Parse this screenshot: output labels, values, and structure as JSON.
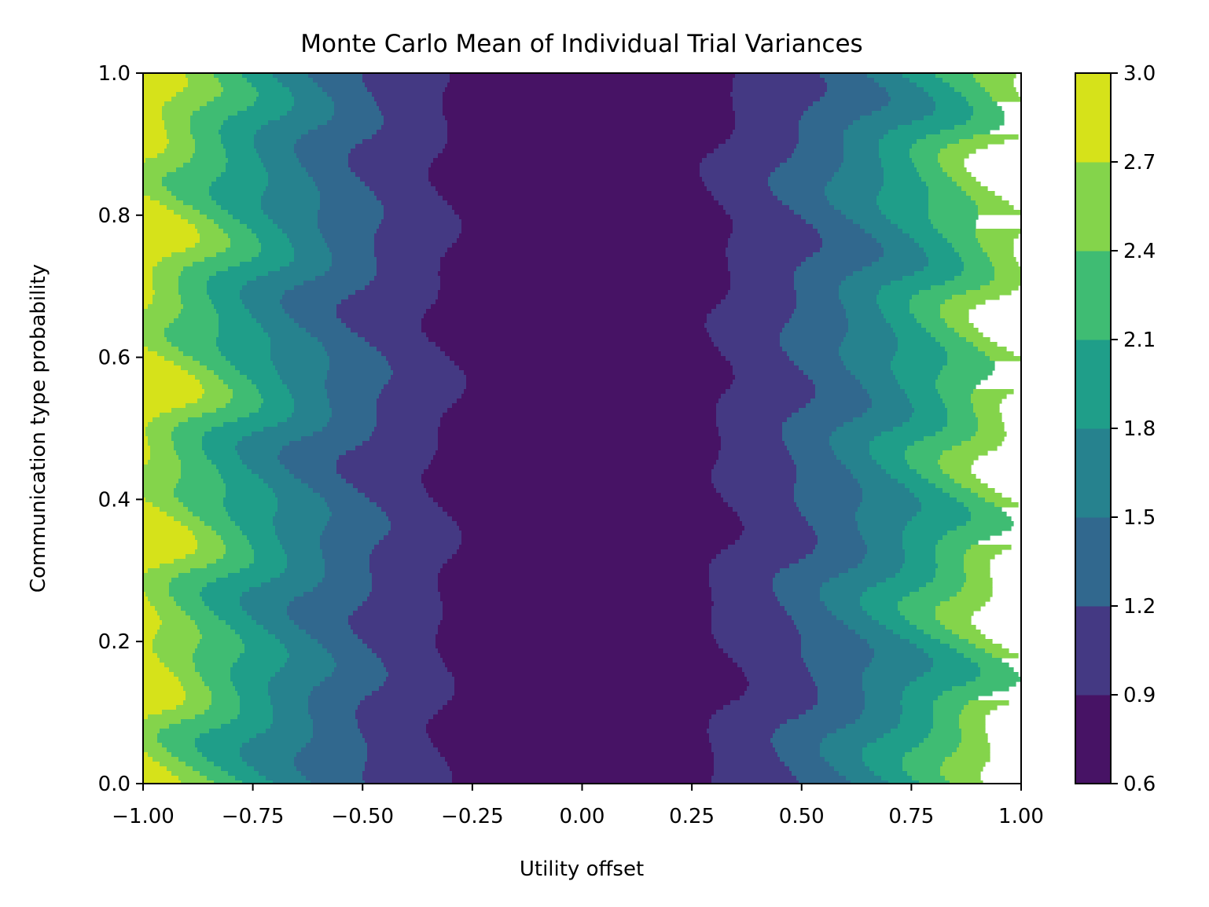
{
  "chart_data": {
    "type": "contour",
    "title": "Monte Carlo Mean of Individual Trial Variances",
    "xlabel": "Utility offset",
    "ylabel": "Communication type probability",
    "xlim": [
      -1.0,
      1.0
    ],
    "ylim": [
      0.0,
      1.0
    ],
    "xticks": [
      "−1.00",
      "−0.75",
      "−0.50",
      "−0.25",
      "0.00",
      "0.25",
      "0.50",
      "0.75",
      "1.00"
    ],
    "xtick_values": [
      -1.0,
      -0.75,
      -0.5,
      -0.25,
      0.0,
      0.25,
      0.5,
      0.75,
      1.0
    ],
    "yticks": [
      "0.0",
      "0.2",
      "0.4",
      "0.6",
      "0.8",
      "1.0"
    ],
    "ytick_values": [
      0.0,
      0.2,
      0.4,
      0.6,
      0.8,
      1.0
    ],
    "colorbar": {
      "levels": [
        0.6,
        0.9,
        1.2,
        1.5,
        1.8,
        2.1,
        2.4,
        2.7,
        3.0
      ],
      "tick_labels": [
        "0.6",
        "0.9",
        "1.2",
        "1.5",
        "1.8",
        "2.1",
        "2.4",
        "2.7",
        "3.0"
      ],
      "colors": [
        "#471365",
        "#443983",
        "#31688e",
        "#26828e",
        "#1f9e89",
        "#35b779",
        "#6ece58",
        "#b5de2b",
        "#d6e21a"
      ],
      "band_colors": [
        "#471365",
        "#443983",
        "#31688e",
        "#26828e",
        "#1f9e89",
        "#3fbc73",
        "#84d44b",
        "#d6e21a"
      ]
    },
    "x": [
      -1.0,
      -0.9,
      -0.8,
      -0.7,
      -0.6,
      -0.5,
      -0.4,
      -0.3,
      -0.2,
      -0.1,
      0.0,
      0.1,
      0.2,
      0.3,
      0.4,
      0.5,
      0.6,
      0.7,
      0.8,
      0.9,
      1.0
    ],
    "y": [
      0.0,
      0.05,
      0.1,
      0.15,
      0.2,
      0.25,
      0.3,
      0.35,
      0.4,
      0.45,
      0.5,
      0.55,
      0.6,
      0.65,
      0.7,
      0.75,
      0.8,
      0.85,
      0.9,
      0.95,
      1.0
    ],
    "z_model": "z ≈ 0.68 + 2.2·x² (approx. symmetric in utility offset, nearly constant in probability)",
    "colormap": "viridis"
  }
}
